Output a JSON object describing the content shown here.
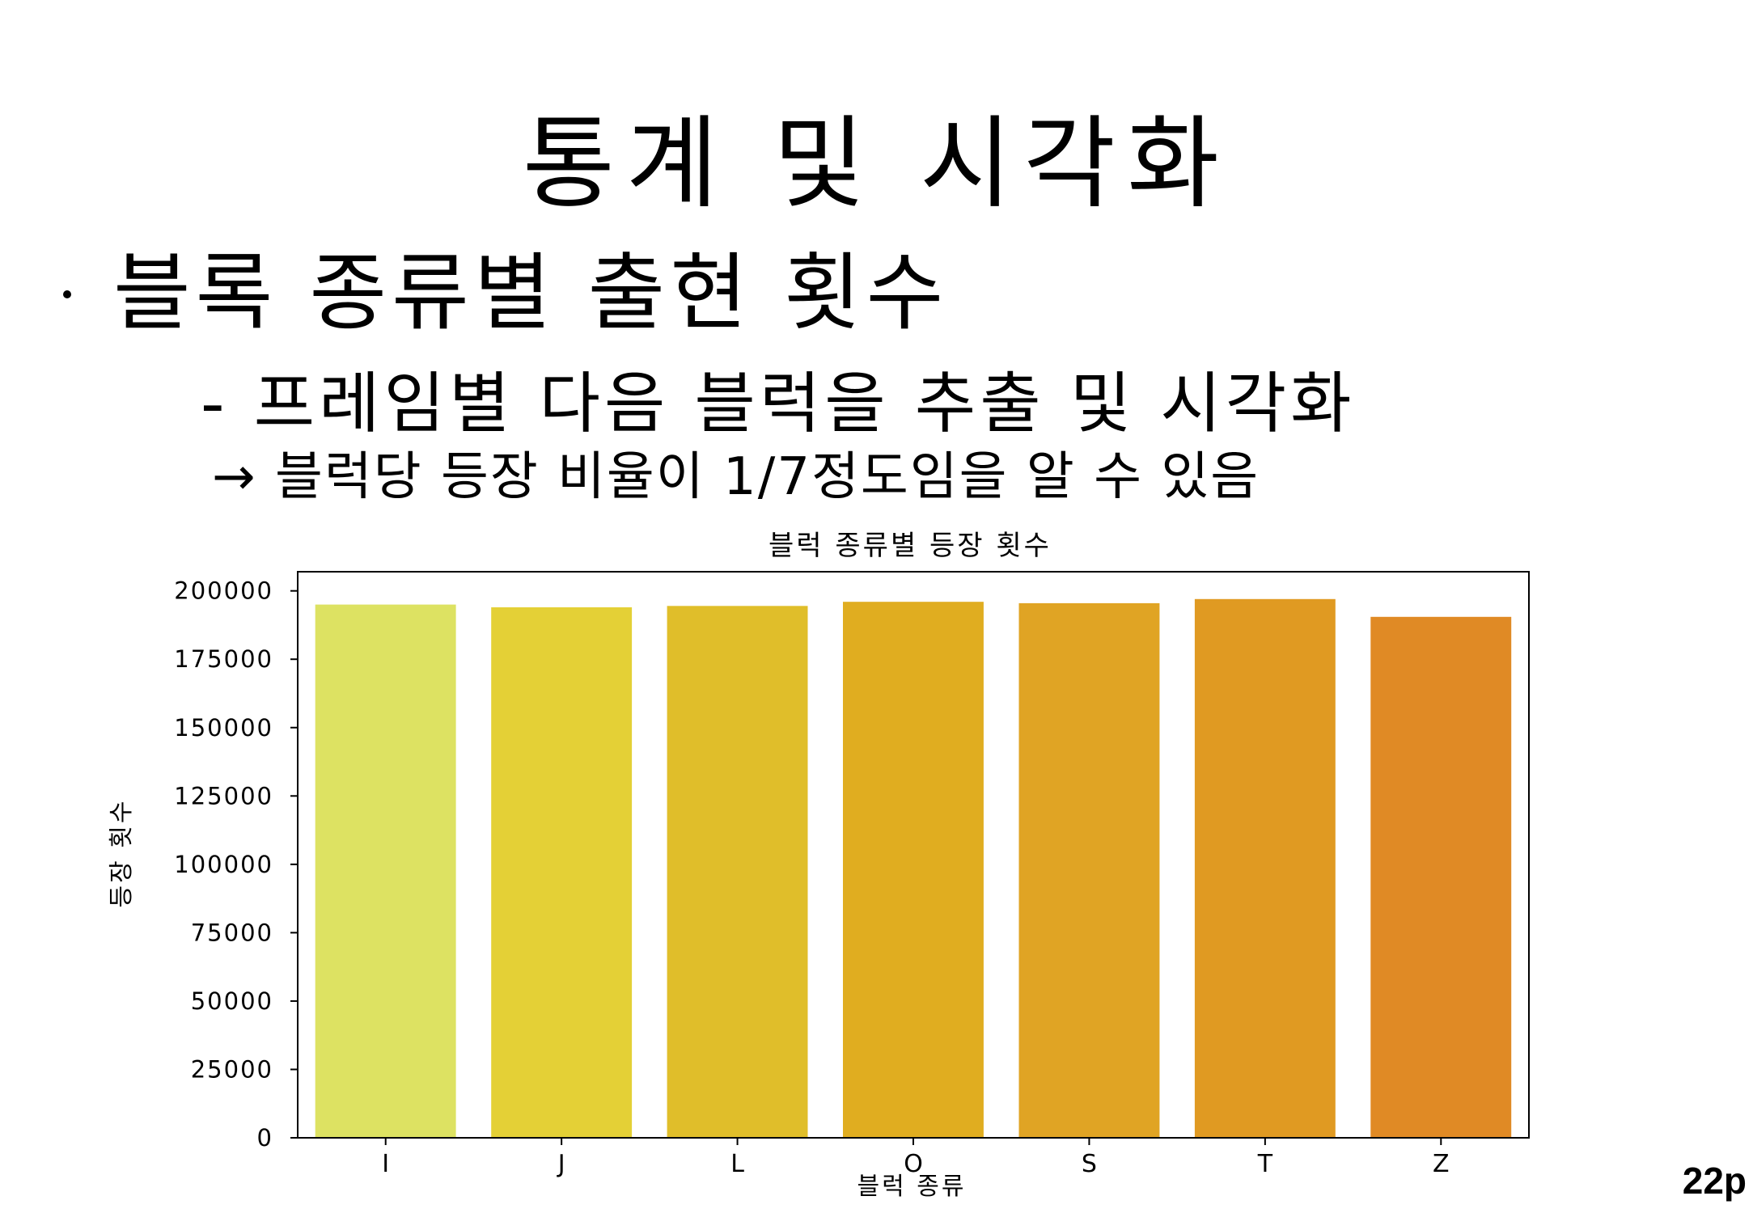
{
  "slide": {
    "title": "통계 및 시각화",
    "bullet": "블록 종류별 출현 횟수",
    "sub_bullet": "- 프레임별 다음 블럭을 추출 및 시각화",
    "arrow_note": "→ 블럭당 등장 비율이 1/7정도임을 알 수 있음",
    "page_number": "22p"
  },
  "chart_data": {
    "type": "bar",
    "title": "블럭 종류별 등장 횟수",
    "xlabel": "블럭 종류",
    "ylabel": "등장 횟수",
    "categories": [
      "I",
      "J",
      "L",
      "O",
      "S",
      "T",
      "Z"
    ],
    "values": [
      195000,
      194000,
      194500,
      196000,
      195500,
      197000,
      190500
    ],
    "colors": [
      "#dde262",
      "#e4d036",
      "#e0be2a",
      "#e0ad20",
      "#e0a424",
      "#e09a22",
      "#e08a25"
    ],
    "ylim": [
      0,
      207000
    ],
    "yticks": [
      0,
      25000,
      50000,
      75000,
      100000,
      125000,
      150000,
      175000,
      200000
    ],
    "grid": false,
    "legend": "none"
  }
}
